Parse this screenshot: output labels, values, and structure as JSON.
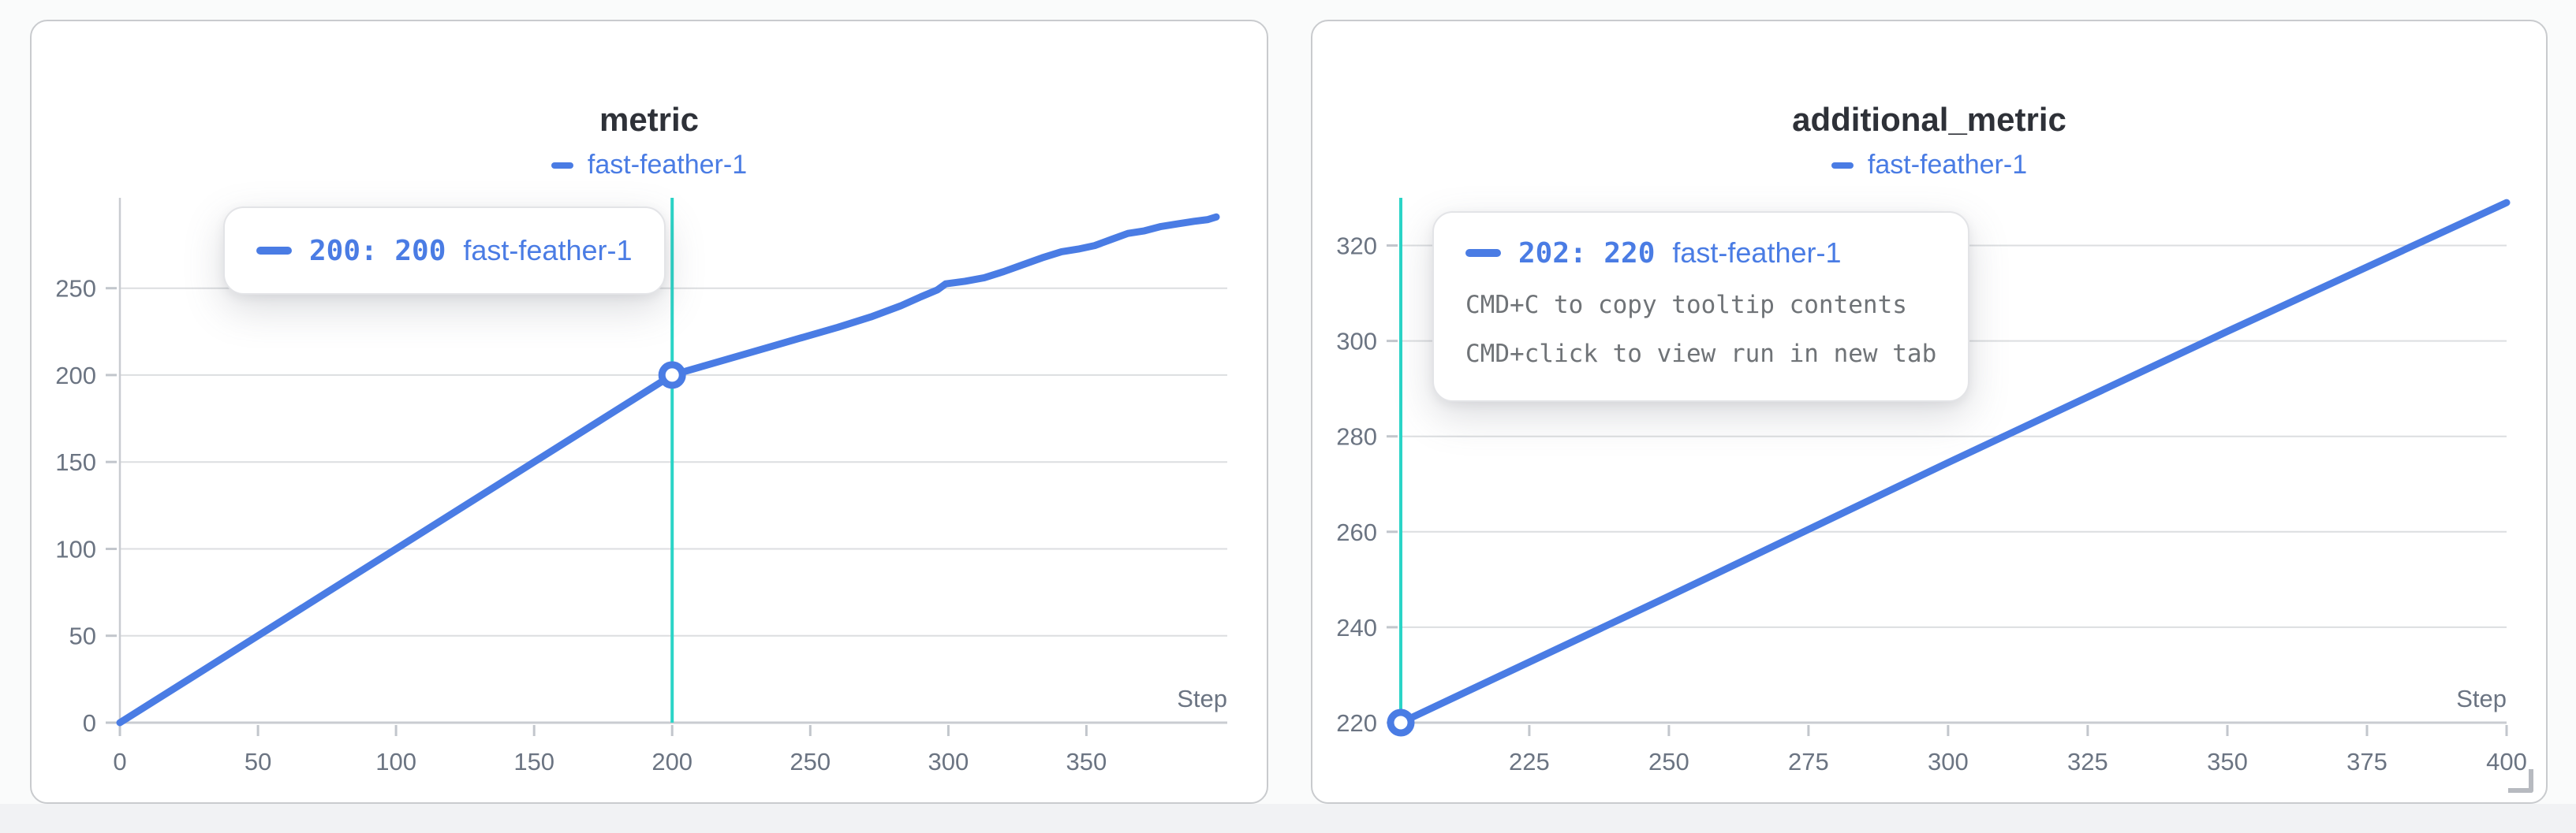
{
  "colors": {
    "accent_blue": "#4a7ce4",
    "crosshair_teal": "#2bd4c7",
    "grid": "#dcdee0",
    "axis": "#c9ccd1",
    "tick": "#c2c6cc",
    "tick_label": "#6b7482",
    "title_text": "#2e3138",
    "tooltip_hint_text": "#6f7377",
    "card_border": "#c9cbce",
    "page_bg": "#fafbfb",
    "footer_bg": "#f1f2f4"
  },
  "chart_data": [
    {
      "type": "line",
      "title": "metric",
      "xlabel": "Step",
      "ylabel": "",
      "xlim": [
        0,
        401
      ],
      "ylim": [
        0,
        302
      ],
      "xticks": [
        0,
        50,
        100,
        150,
        200,
        250,
        300,
        350
      ],
      "yticks": [
        0,
        50,
        100,
        150,
        200,
        250
      ],
      "grid": true,
      "y_axis_line": true,
      "legend": [
        {
          "label": "fast-feather-1",
          "color": "#4a7ce4"
        }
      ],
      "series": [
        {
          "name": "fast-feather-1",
          "color": "#4a7ce4",
          "points": [
            [
              0,
              0
            ],
            [
              25,
              25
            ],
            [
              50,
              50
            ],
            [
              75,
              75
            ],
            [
              100,
              100
            ],
            [
              125,
              125
            ],
            [
              150,
              150
            ],
            [
              175,
              175
            ],
            [
              200,
              200
            ],
            [
              212,
              205.5
            ],
            [
              224,
              211
            ],
            [
              236,
              216.5
            ],
            [
              248,
              222
            ],
            [
              260,
              227.5
            ],
            [
              272,
              233.5
            ],
            [
              283,
              240
            ],
            [
              290,
              245
            ],
            [
              296,
              249
            ],
            [
              299,
              252.5
            ],
            [
              306,
              254
            ],
            [
              313,
              256
            ],
            [
              320,
              259.5
            ],
            [
              327,
              263.5
            ],
            [
              334,
              267.5
            ],
            [
              341,
              271
            ],
            [
              347,
              272.5
            ],
            [
              353,
              274.5
            ],
            [
              359,
              278
            ],
            [
              365,
              281.5
            ],
            [
              371,
              283
            ],
            [
              377,
              285.5
            ],
            [
              383,
              287
            ],
            [
              389,
              288.5
            ],
            [
              394,
              289.5
            ],
            [
              397,
              291
            ]
          ]
        }
      ],
      "crosshair_x": 200,
      "highlight_point": [
        200,
        200
      ],
      "tooltip": {
        "value_text": "200: 200",
        "run": "fast-feather-1"
      }
    },
    {
      "type": "line",
      "title": "additional_metric",
      "xlabel": "Step",
      "ylabel": "",
      "xlim": [
        202,
        400
      ],
      "ylim": [
        220,
        330
      ],
      "xticks": [
        225,
        250,
        275,
        300,
        325,
        350,
        375,
        400
      ],
      "yticks": [
        220,
        240,
        260,
        280,
        300,
        320
      ],
      "grid": true,
      "y_axis_line": false,
      "legend": [
        {
          "label": "fast-feather-1",
          "color": "#4a7ce4"
        }
      ],
      "series": [
        {
          "name": "fast-feather-1",
          "color": "#4a7ce4",
          "points": [
            [
              202,
              220
            ],
            [
              250,
              246.5
            ],
            [
              300,
              274.5
            ],
            [
              350,
              302
            ],
            [
              400,
              329
            ]
          ]
        }
      ],
      "crosshair_x": 202,
      "highlight_point": [
        202,
        220
      ],
      "tooltip": {
        "value_text": "202: 220",
        "run": "fast-feather-1",
        "hint_copy": "CMD+C to copy tooltip contents",
        "hint_click": "CMD+click to view run in new tab"
      }
    }
  ]
}
